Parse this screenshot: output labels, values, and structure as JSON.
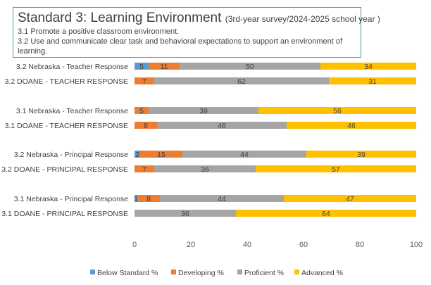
{
  "title": {
    "main": "Standard 3: Learning Environment",
    "sub": "(3rd-year survey/2024-2025 school year )",
    "line1": "3.1 Promote a positive classroom environment.",
    "line2": "3.2 Use and communicate clear task and behavioral expectations to support an environment of",
    "line3": "learning."
  },
  "colors": {
    "Below Standard %": "#5b9bd5",
    "Developing %": "#ed7d31",
    "Proficient %": "#a5a5a5",
    "Advanced %": "#ffc000"
  },
  "chart_data": {
    "type": "bar",
    "orientation": "horizontal",
    "stacked": true,
    "title": "Standard 3: Learning Environment (3rd-year survey/2024-2025 school year )",
    "categories": [
      "3.2 Nebraska - Teacher Response",
      "3.2 DOANE - TEACHER RESPONSE",
      "3.1 Nebraska - Teacher Response",
      "3.1 DOANE - TEACHER RESPONSE",
      "3.2 Nebraska - Principal Response",
      "3.2  DOANE  - PRINCIPAL RESPONSE",
      "3.1 Nebraska - Principal Response",
      "3.1 DOANE  - PRINCIPAL RESPONSE"
    ],
    "series": [
      {
        "name": "Below Standard %",
        "values": [
          5,
          0,
          0,
          0,
          2,
          0,
          1,
          0
        ]
      },
      {
        "name": "Developing %",
        "values": [
          11,
          7,
          5,
          8,
          15,
          7,
          8,
          0
        ]
      },
      {
        "name": "Proficient %",
        "values": [
          50,
          62,
          39,
          46,
          44,
          36,
          44,
          36
        ]
      },
      {
        "name": "Advanced %",
        "values": [
          34,
          31,
          56,
          46,
          39,
          57,
          47,
          64
        ]
      }
    ],
    "xlim": [
      0,
      100
    ],
    "xticks": [
      0,
      20,
      40,
      60,
      80,
      100
    ],
    "grid": false,
    "legend": "bottom"
  }
}
